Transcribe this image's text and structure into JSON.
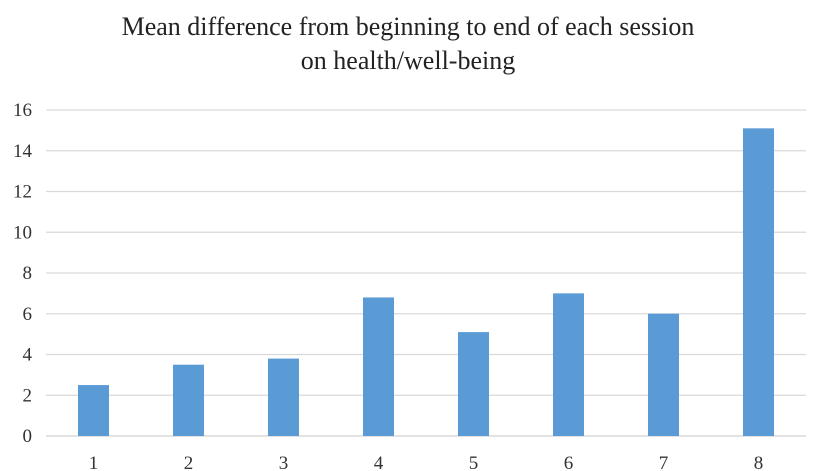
{
  "chart_data": {
    "type": "bar",
    "title_line1": "Mean difference from beginning to end of each session",
    "title_line2": "on health/well-being",
    "categories": [
      "1",
      "2",
      "3",
      "4",
      "5",
      "6",
      "7",
      "8"
    ],
    "values": [
      2.5,
      3.5,
      3.8,
      6.8,
      5.1,
      7.0,
      6.0,
      15.1
    ],
    "xlabel": "",
    "ylabel": "",
    "ylim": [
      0,
      16
    ],
    "yticks": [
      0,
      2,
      4,
      6,
      8,
      10,
      12,
      14,
      16
    ],
    "grid": true,
    "legend": "none",
    "bar_color": "#5B9BD5",
    "grid_color": "#D9D9D9"
  }
}
